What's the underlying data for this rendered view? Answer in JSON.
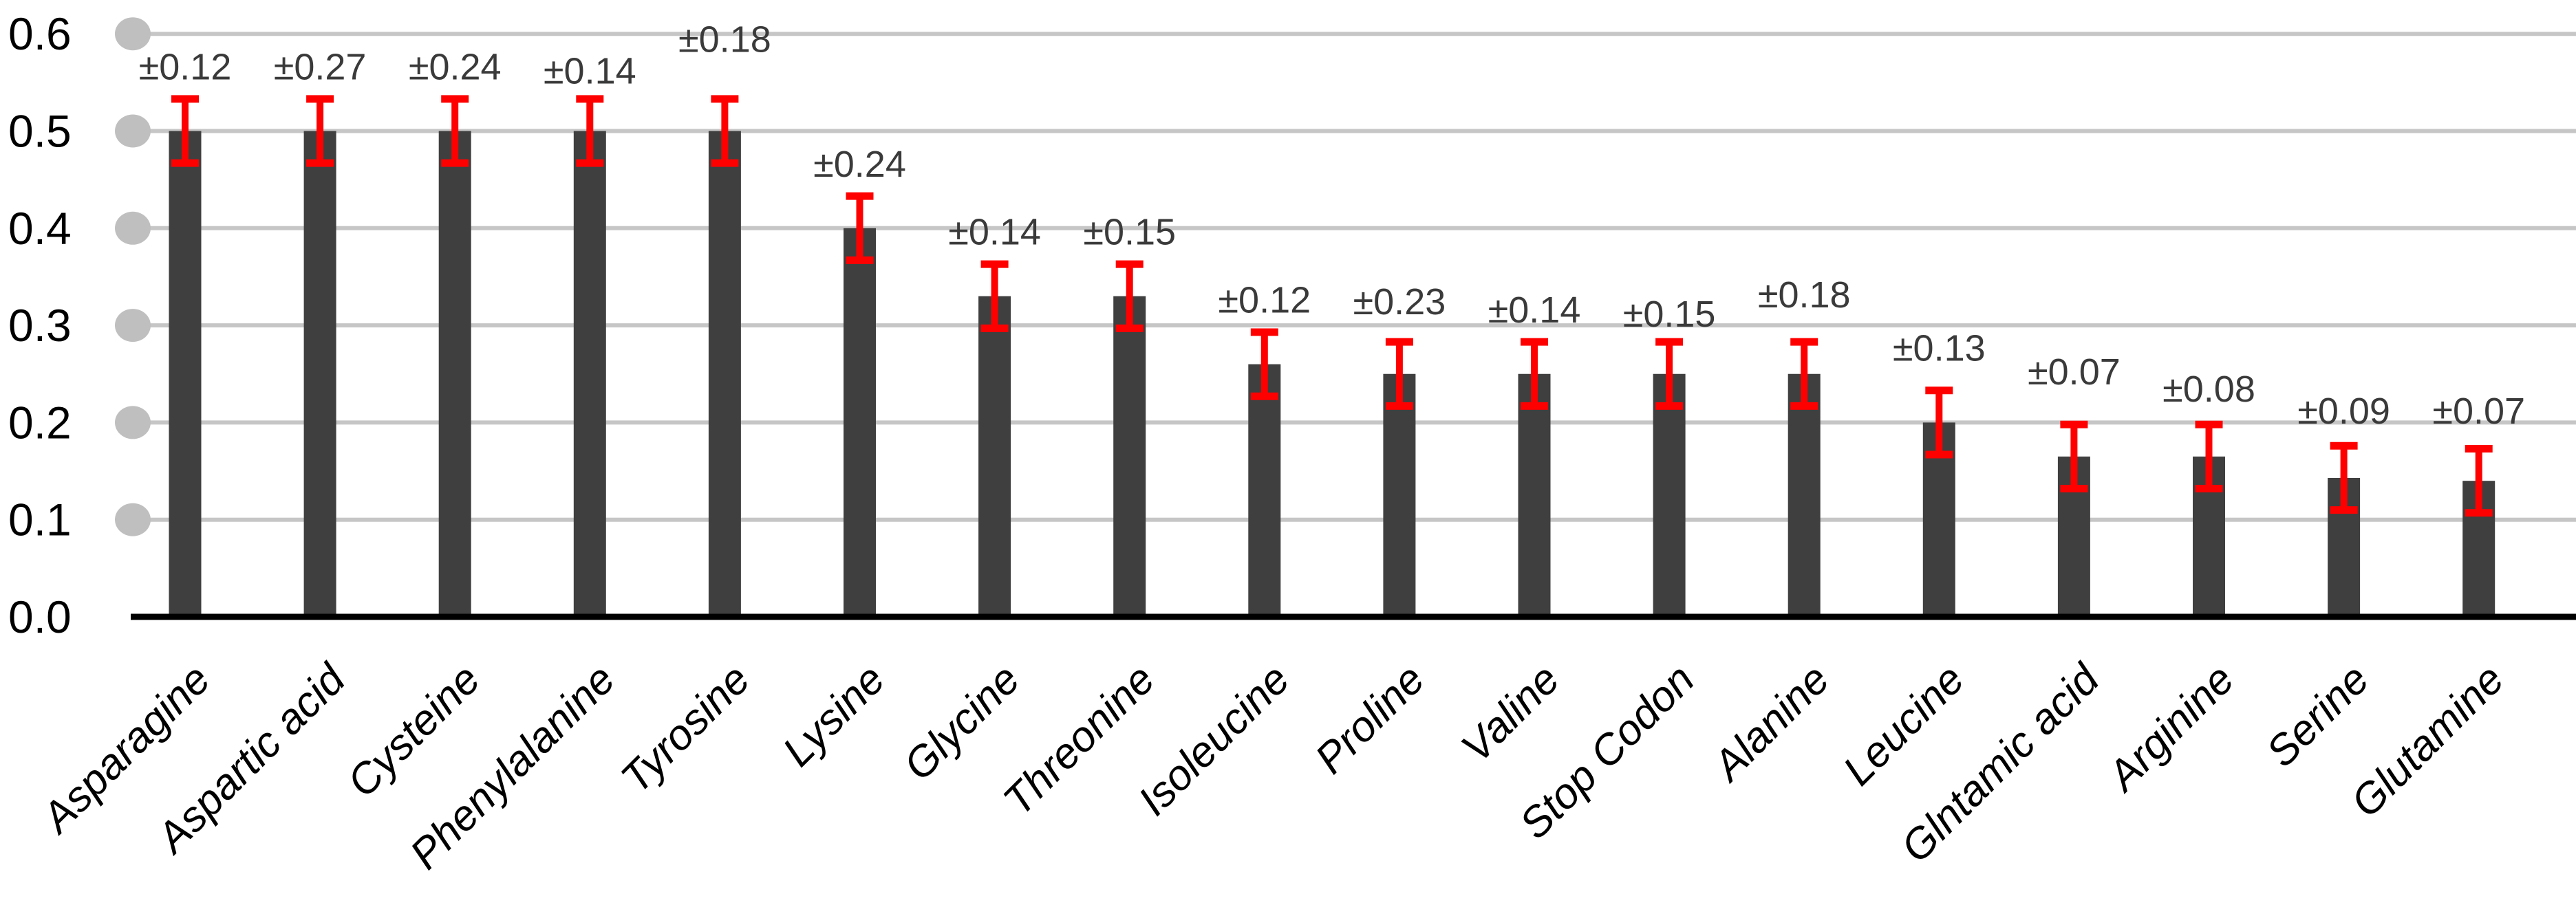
{
  "chart_data": {
    "type": "bar",
    "title": "",
    "xlabel": "",
    "ylabel": "",
    "legend": "none",
    "grid": true,
    "ylim": [
      0,
      0.6
    ],
    "y_ticks": [
      "0.0",
      "0.1",
      "0.2",
      "0.3",
      "0.4",
      "0.5",
      "0.6"
    ],
    "categories": [
      "Asparagine",
      "Aspartic acid",
      "Cysteine",
      "Phenylalanine",
      "Tyrosine",
      "Lysine",
      "Glycine",
      "Threonine",
      "Isoleucine",
      "Proline",
      "Valine",
      "Stop Codon",
      "Alanine",
      "Leucine",
      "Glntamic acid",
      "Arginine",
      "Serine",
      "Glutamine"
    ],
    "values": [
      0.5,
      0.5,
      0.5,
      0.5,
      0.5,
      0.4,
      0.33,
      0.33,
      0.26,
      0.25,
      0.25,
      0.25,
      0.25,
      0.2,
      0.165,
      0.165,
      0.143,
      0.14
    ],
    "error_labels": [
      "±0.12",
      "±0.27",
      "±0.24",
      "±0.14",
      "±0.18",
      "±0.24",
      "±0.14",
      "±0.15",
      "±0.12",
      "±0.23",
      "±0.14",
      "±0.15",
      "±0.18",
      "±0.13",
      "±0.07",
      "±0.08",
      "±0.09",
      "±0.07"
    ],
    "error_whisker_half": 0.033,
    "label_dy": [
      0,
      0,
      0,
      6,
      -40,
      0,
      0,
      0,
      0,
      -12,
      0,
      6,
      -22,
      -15,
      -30,
      -5,
      -4,
      -8
    ]
  },
  "colors": {
    "bar": "#3f3f3f",
    "error": "#ff0000",
    "gridline": "#c6c6c6",
    "marker": "#bfbfbf",
    "axis": "#000000",
    "tick_label": "#000000",
    "annotation": "#3a3a3a",
    "background": "#ffffff"
  }
}
